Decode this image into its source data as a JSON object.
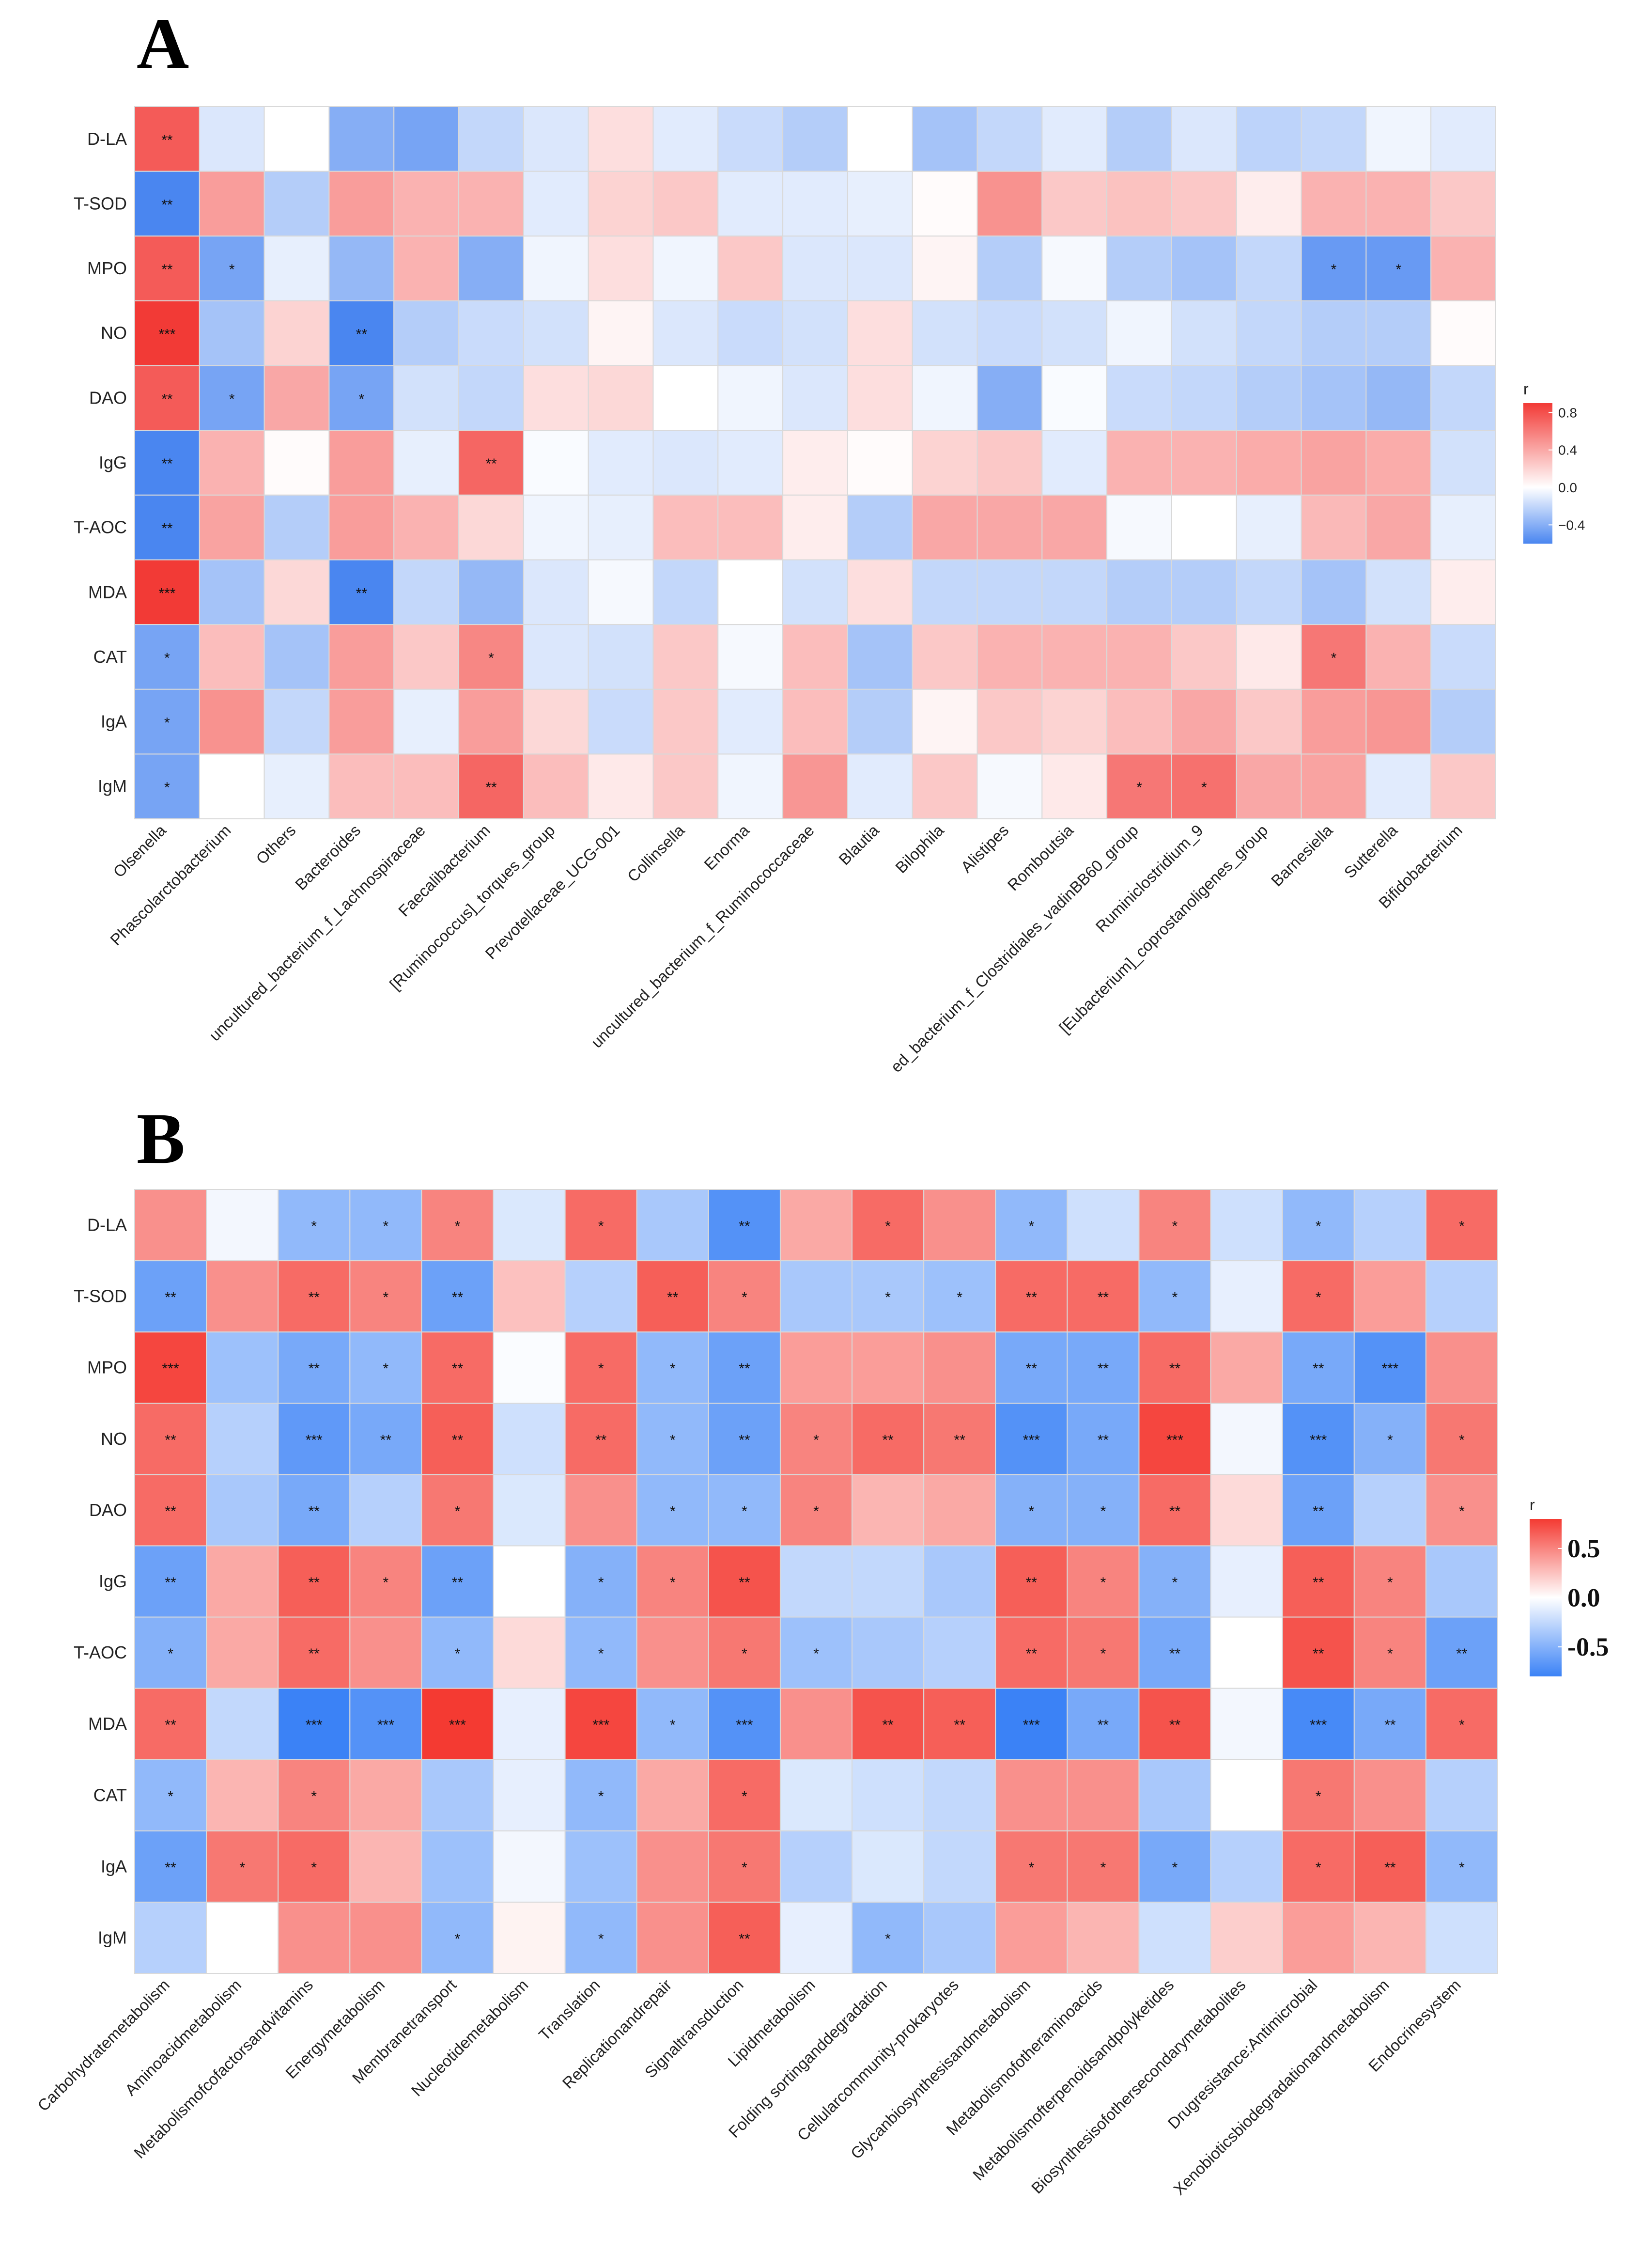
{
  "chart_data": [
    {
      "type": "heatmap",
      "panel": "A",
      "rows": [
        "D-LA",
        "T-SOD",
        "MPO",
        "NO",
        "DAO",
        "IgG",
        "T-AOC",
        "MDA",
        "CAT",
        "IgA",
        "IgM"
      ],
      "columns": [
        "Olsenella",
        "Phascolarctobacterium",
        "Others",
        "Bacteroides",
        "uncultured_bacterium_f_Lachnospiraceae",
        "Faecalibacterium",
        "[Ruminococcus]_torques_group",
        "Prevotellaceae_UCG-001",
        "Collinsella",
        "Enorma",
        "uncultured_bacterium_f_Ruminococcaceae",
        "Blautia",
        "Bilophila",
        "Alistipes",
        "Romboutsia",
        "ed_bacterium_f_Clostridiales_vadinBB60_group",
        "Ruminiclostridium_9",
        "[Eubacterium]_coprostanoligenes_group",
        "Barnesiella",
        "Sutterella",
        "Bifidobacterium"
      ],
      "values": [
        [
          0.75,
          -0.12,
          0.0,
          -0.4,
          -0.45,
          -0.2,
          -0.12,
          0.15,
          -0.1,
          -0.18,
          -0.25,
          0.0,
          -0.3,
          -0.2,
          -0.1,
          -0.25,
          -0.12,
          -0.22,
          -0.2,
          -0.05,
          -0.1
        ],
        [
          -0.6,
          0.45,
          -0.25,
          0.45,
          0.35,
          0.35,
          -0.1,
          0.2,
          0.25,
          -0.1,
          -0.1,
          -0.08,
          0.02,
          0.5,
          0.25,
          0.28,
          0.25,
          0.08,
          0.35,
          0.35,
          0.25
        ],
        [
          0.75,
          -0.45,
          -0.08,
          -0.35,
          0.35,
          -0.4,
          -0.05,
          0.15,
          -0.05,
          0.25,
          -0.12,
          -0.12,
          0.05,
          -0.25,
          -0.03,
          -0.25,
          -0.3,
          -0.2,
          -0.5,
          -0.5,
          0.35
        ],
        [
          0.9,
          -0.3,
          0.2,
          -0.6,
          -0.25,
          -0.18,
          -0.15,
          0.05,
          -0.12,
          -0.18,
          -0.15,
          0.15,
          -0.15,
          -0.18,
          -0.15,
          -0.05,
          -0.15,
          -0.2,
          -0.25,
          -0.25,
          0.02
        ],
        [
          0.75,
          -0.45,
          0.4,
          -0.45,
          -0.15,
          -0.2,
          0.15,
          0.18,
          0.0,
          -0.05,
          -0.12,
          0.15,
          -0.05,
          -0.4,
          -0.02,
          -0.18,
          -0.2,
          -0.25,
          -0.3,
          -0.35,
          -0.2
        ],
        [
          -0.6,
          0.35,
          0.02,
          0.45,
          -0.08,
          0.7,
          -0.02,
          -0.1,
          -0.12,
          -0.1,
          0.08,
          0.02,
          0.2,
          0.25,
          -0.1,
          0.35,
          0.35,
          0.38,
          0.42,
          0.38,
          -0.15
        ],
        [
          -0.6,
          0.42,
          -0.25,
          0.45,
          0.35,
          0.18,
          -0.05,
          -0.08,
          0.3,
          0.3,
          0.08,
          -0.25,
          0.4,
          0.4,
          0.4,
          -0.03,
          0.0,
          -0.08,
          0.32,
          0.4,
          -0.08
        ],
        [
          0.95,
          -0.3,
          0.18,
          -0.6,
          -0.2,
          -0.35,
          -0.12,
          -0.03,
          -0.2,
          0.0,
          -0.15,
          0.15,
          -0.2,
          -0.2,
          -0.2,
          -0.25,
          -0.25,
          -0.2,
          -0.3,
          -0.15,
          0.08
        ],
        [
          -0.45,
          0.3,
          -0.3,
          0.45,
          0.25,
          0.55,
          -0.12,
          -0.15,
          0.25,
          -0.03,
          0.3,
          -0.3,
          0.25,
          0.35,
          0.35,
          0.35,
          0.25,
          0.1,
          0.62,
          0.35,
          -0.18
        ],
        [
          -0.45,
          0.5,
          -0.2,
          0.45,
          -0.08,
          0.45,
          0.18,
          -0.18,
          0.25,
          -0.1,
          0.3,
          -0.25,
          0.05,
          0.25,
          0.2,
          0.3,
          0.4,
          0.25,
          0.45,
          0.48,
          -0.25
        ],
        [
          -0.45,
          0.0,
          -0.08,
          0.3,
          0.3,
          0.7,
          0.3,
          0.1,
          0.25,
          -0.05,
          0.48,
          -0.1,
          0.25,
          -0.03,
          0.1,
          0.62,
          0.65,
          0.4,
          0.42,
          -0.1,
          0.25
        ]
      ],
      "significance": [
        [
          "**",
          "",
          "",
          "",
          "",
          "",
          "",
          "",
          "",
          "",
          "",
          "",
          "",
          "",
          "",
          "",
          "",
          "",
          "",
          "",
          ""
        ],
        [
          "**",
          "",
          "",
          "",
          "",
          "",
          "",
          "",
          "",
          "",
          "",
          "",
          "",
          "",
          "",
          "",
          "",
          "",
          "",
          "",
          ""
        ],
        [
          "**",
          "*",
          "",
          "",
          "",
          "",
          "",
          "",
          "",
          "",
          "",
          "",
          "",
          "",
          "",
          "",
          "",
          "",
          "*",
          "*",
          ""
        ],
        [
          "***",
          "",
          "",
          "**",
          "",
          "",
          "",
          "",
          "",
          "",
          "",
          "",
          "",
          "",
          "",
          "",
          "",
          "",
          "",
          "",
          ""
        ],
        [
          "**",
          "*",
          "",
          "*",
          "",
          "",
          "",
          "",
          "",
          "",
          "",
          "",
          "",
          "",
          "",
          "",
          "",
          "",
          "",
          "",
          ""
        ],
        [
          "**",
          "",
          "",
          "",
          "",
          "**",
          "",
          "",
          "",
          "",
          "",
          "",
          "",
          "",
          "",
          "",
          "",
          "",
          "",
          "",
          ""
        ],
        [
          "**",
          "",
          "",
          "",
          "",
          "",
          "",
          "",
          "",
          "",
          "",
          "",
          "",
          "",
          "",
          "",
          "",
          "",
          "",
          "",
          ""
        ],
        [
          "***",
          "",
          "",
          "**",
          "",
          "",
          "",
          "",
          "",
          "",
          "",
          "",
          "",
          "",
          "",
          "",
          "",
          "",
          "",
          "",
          ""
        ],
        [
          "*",
          "",
          "",
          "",
          "",
          "*",
          "",
          "",
          "",
          "",
          "",
          "",
          "",
          "",
          "",
          "",
          "",
          "",
          "*",
          "",
          ""
        ],
        [
          "*",
          "",
          "",
          "",
          "",
          "",
          "",
          "",
          "",
          "",
          "",
          "",
          "",
          "",
          "",
          "",
          "",
          "",
          "",
          "",
          ""
        ],
        [
          "*",
          "",
          "",
          "",
          "",
          "**",
          "",
          "",
          "",
          "",
          "",
          "",
          "",
          "",
          "",
          "*",
          "*",
          "",
          "",
          "",
          ""
        ]
      ],
      "legend": {
        "title": "r",
        "ticks": [
          "0.8",
          "0.4",
          "0.0",
          "−0.4"
        ],
        "range": [
          -0.6,
          0.9
        ]
      },
      "colors": {
        "low": "#4a86f0",
        "mid": "#ffffff",
        "high": "#f23a36"
      }
    },
    {
      "type": "heatmap",
      "panel": "B",
      "rows": [
        "D-LA",
        "T-SOD",
        "MPO",
        "NO",
        "DAO",
        "IgG",
        "T-AOC",
        "MDA",
        "CAT",
        "IgA",
        "IgM"
      ],
      "columns": [
        "Carbohydratemetabolism",
        "Aminoacidmetabolism",
        "Metabolismofcofactorsandvitamins",
        "Energymetabolism",
        "Membranetransport",
        "Nucleotidemetabolism",
        "Translation",
        "Replicationandrepair",
        "Signaltransduction",
        "Lipidmetabolism",
        "Folding sortinganddegradation",
        "Cellularcommunity-prokaryotes",
        "Glycanbiosynthesisandmetabolism",
        "Metabolismofotheraminoacids",
        "Metabolismofterpenoidsandpolyketides",
        "Biosynthesisofothersecondarymetabolites",
        "Drugresistance:Antimicrobial",
        "Xenobioticsbiodegradationandmetabolism",
        "Endocrinesystem"
      ],
      "values": [
        [
          0.45,
          -0.05,
          -0.45,
          -0.45,
          0.5,
          -0.15,
          0.6,
          -0.35,
          -0.7,
          0.35,
          0.6,
          0.45,
          -0.45,
          -0.2,
          0.5,
          -0.2,
          -0.45,
          -0.3,
          0.6
        ],
        [
          -0.6,
          0.45,
          0.6,
          0.5,
          -0.6,
          0.25,
          -0.3,
          0.65,
          0.5,
          -0.35,
          -0.35,
          -0.4,
          0.6,
          0.6,
          -0.45,
          -0.1,
          0.6,
          0.4,
          -0.3
        ],
        [
          0.75,
          -0.4,
          -0.55,
          -0.45,
          0.6,
          -0.02,
          0.6,
          -0.45,
          -0.6,
          0.4,
          0.4,
          0.45,
          -0.55,
          -0.55,
          0.6,
          0.35,
          -0.55,
          -0.7,
          0.45
        ],
        [
          0.6,
          -0.3,
          -0.65,
          -0.55,
          0.65,
          -0.2,
          0.6,
          -0.45,
          -0.6,
          0.5,
          0.6,
          0.55,
          -0.7,
          -0.55,
          0.75,
          -0.05,
          -0.7,
          -0.5,
          0.55
        ],
        [
          0.6,
          -0.35,
          -0.55,
          -0.3,
          0.55,
          -0.15,
          0.45,
          -0.45,
          -0.45,
          0.5,
          0.3,
          0.35,
          -0.5,
          -0.5,
          0.6,
          0.15,
          -0.6,
          -0.3,
          0.45
        ],
        [
          -0.6,
          0.35,
          0.65,
          0.5,
          -0.6,
          0.0,
          -0.5,
          0.5,
          0.7,
          -0.25,
          -0.25,
          -0.35,
          0.65,
          0.5,
          -0.5,
          -0.1,
          0.65,
          0.5,
          -0.35
        ],
        [
          -0.5,
          0.35,
          0.6,
          0.45,
          -0.45,
          0.15,
          -0.45,
          0.45,
          0.55,
          -0.4,
          -0.35,
          -0.3,
          0.6,
          0.55,
          -0.55,
          0.0,
          0.7,
          0.5,
          -0.6
        ],
        [
          0.6,
          -0.25,
          -0.8,
          -0.7,
          0.8,
          -0.1,
          0.75,
          -0.45,
          -0.7,
          0.45,
          0.7,
          0.65,
          -0.8,
          -0.55,
          0.7,
          -0.05,
          -0.75,
          -0.55,
          0.6
        ],
        [
          -0.45,
          0.3,
          0.5,
          0.35,
          -0.35,
          -0.1,
          -0.45,
          0.35,
          0.6,
          -0.15,
          -0.2,
          -0.25,
          0.45,
          0.45,
          -0.35,
          0.0,
          0.55,
          0.45,
          -0.3
        ],
        [
          -0.6,
          0.55,
          0.6,
          0.3,
          -0.4,
          -0.05,
          -0.4,
          0.45,
          0.55,
          -0.3,
          -0.15,
          -0.25,
          0.55,
          0.55,
          -0.55,
          -0.3,
          0.6,
          0.65,
          -0.45
        ],
        [
          -0.3,
          0.0,
          0.45,
          0.45,
          -0.45,
          0.05,
          -0.45,
          0.45,
          0.65,
          -0.1,
          -0.45,
          -0.35,
          0.4,
          0.3,
          -0.2,
          0.2,
          0.4,
          0.3,
          -0.2
        ]
      ],
      "significance": [
        [
          "",
          "",
          "*",
          "*",
          "*",
          "",
          "*",
          "",
          "**",
          "",
          "*",
          "",
          "*",
          "",
          "*",
          "",
          "*",
          "",
          "*"
        ],
        [
          "**",
          "",
          "**",
          "*",
          "**",
          "",
          "",
          "**",
          "*",
          "",
          "*",
          "*",
          "**",
          "**",
          "*",
          "",
          "*",
          "",
          ""
        ],
        [
          "***",
          "",
          "**",
          "*",
          "**",
          "",
          "*",
          "*",
          "**",
          "",
          "",
          "",
          "**",
          "**",
          "**",
          "",
          "**",
          "***",
          ""
        ],
        [
          "**",
          "",
          "***",
          "**",
          "**",
          "",
          "**",
          "*",
          "**",
          "*",
          "**",
          "**",
          "***",
          "**",
          "***",
          "",
          "***",
          "*",
          "*"
        ],
        [
          "**",
          "",
          "**",
          "",
          "*",
          "",
          "",
          "*",
          "*",
          "*",
          "",
          "",
          "*",
          "*",
          "**",
          "",
          "**",
          "",
          "*"
        ],
        [
          "**",
          "",
          "**",
          "*",
          "**",
          "",
          "*",
          "*",
          "**",
          "",
          "",
          "",
          "**",
          "*",
          "*",
          "",
          "**",
          "*",
          ""
        ],
        [
          "*",
          "",
          "**",
          "",
          "*",
          "",
          "*",
          "",
          "*",
          "*",
          "",
          "",
          "**",
          "*",
          "**",
          "",
          "**",
          "*",
          "**"
        ],
        [
          "**",
          "",
          "***",
          "***",
          "***",
          "",
          "***",
          "*",
          "***",
          "",
          "**",
          "**",
          "***",
          "**",
          "**",
          "",
          "***",
          "**",
          "*"
        ],
        [
          "*",
          "",
          "*",
          "",
          "",
          "",
          "*",
          "",
          "*",
          "",
          "",
          "",
          "",
          "",
          "",
          "",
          "*",
          "",
          ""
        ],
        [
          "**",
          "*",
          "*",
          "",
          "",
          "",
          "",
          "",
          "*",
          "",
          "",
          "",
          "*",
          "*",
          "*",
          "",
          "*",
          "**",
          "*"
        ],
        [
          "",
          "",
          "",
          "",
          "*",
          "",
          "*",
          "",
          "**",
          "",
          "*",
          "",
          "",
          "",
          "",
          "",
          "",
          "",
          ""
        ]
      ],
      "legend": {
        "title": "r",
        "ticks": [
          "0.5",
          "0.0",
          "-0.5"
        ],
        "range": [
          -0.8,
          0.8
        ]
      },
      "colors": {
        "low": "#3b82f6",
        "mid": "#ffffff",
        "high": "#f43a32"
      }
    }
  ]
}
